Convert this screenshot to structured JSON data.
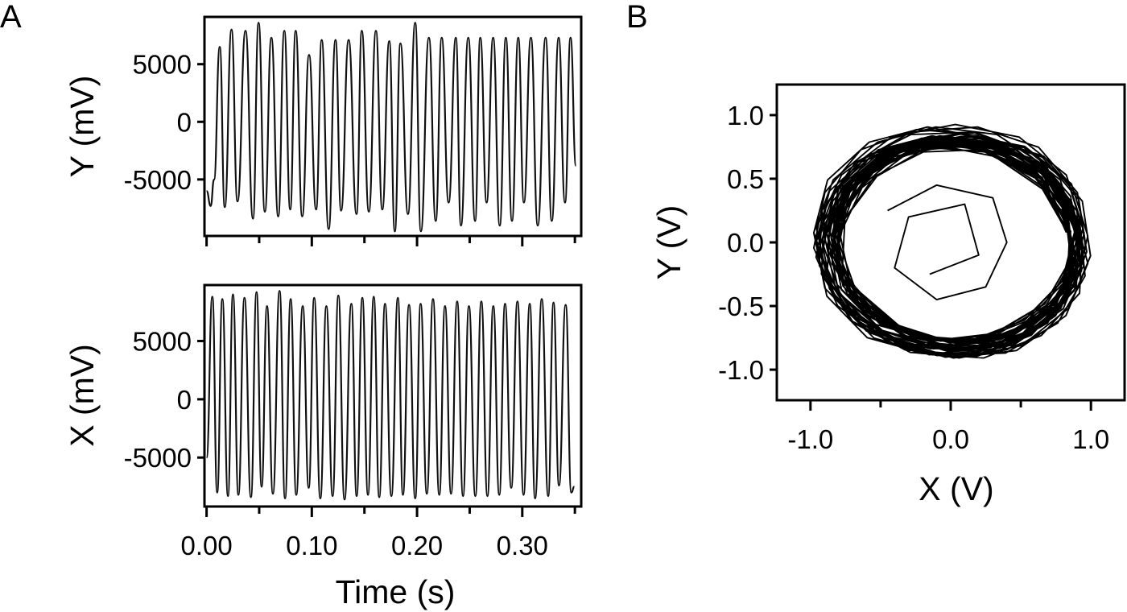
{
  "panel_a_letter": "A",
  "panel_b_letter": "B",
  "chart_data": [
    {
      "id": "panel-a-top",
      "type": "line",
      "xlabel": "",
      "ylabel": "Y (mV)",
      "xlim": [
        -0.002,
        0.356
      ],
      "ylim": [
        -9900,
        9100
      ],
      "yticks": [
        -5000,
        0,
        5000
      ],
      "ytick_labels": [
        "-5000",
        "0",
        "5000"
      ],
      "xticks": [
        0.0,
        0.05,
        0.1,
        0.15,
        0.2,
        0.25,
        0.3,
        0.35
      ],
      "xtick_labels": [],
      "grid": false,
      "series": [
        {
          "x": [
            0.0,
            0.0039,
            0.0071,
            0.0125,
            0.0173,
            0.0237,
            0.0294,
            0.037,
            0.0441,
            0.0494,
            0.0554,
            0.0616,
            0.0681,
            0.0739,
            0.0795,
            0.0847,
            0.0909,
            0.0974,
            0.1041,
            0.1094,
            0.116,
            0.1225,
            0.1278,
            0.135,
            0.1425,
            0.1475,
            0.1542,
            0.1609,
            0.167,
            0.1736,
            0.1789,
            0.1842,
            0.1914,
            0.1983,
            0.2036,
            0.2113,
            0.2178,
            0.2234,
            0.23,
            0.2369,
            0.2417,
            0.2487,
            0.2552,
            0.2601,
            0.2661,
            0.2723,
            0.2786,
            0.2844,
            0.2902,
            0.2962,
            0.3015,
            0.3082,
            0.3147,
            0.3222,
            0.328,
            0.3346,
            0.3406,
            0.3458,
            0.351
          ],
          "y": [
            -6000,
            -7300,
            -5000,
            6500,
            -7400,
            8000,
            -6900,
            7900,
            -8400,
            8600,
            -7800,
            7300,
            -8200,
            7900,
            -7600,
            7900,
            -8200,
            5800,
            -7600,
            7100,
            -9300,
            7100,
            -7700,
            7100,
            -8000,
            7900,
            -7800,
            7900,
            -7600,
            7000,
            -9500,
            6800,
            -8000,
            8600,
            -9500,
            7300,
            -8600,
            7300,
            -7000,
            7300,
            -9000,
            7300,
            -8600,
            7300,
            -7000,
            7300,
            -9000,
            7300,
            -8600,
            7300,
            -7000,
            7300,
            -9000,
            7300,
            -8600,
            7300,
            -7000,
            7300,
            -3800
          ]
        }
      ]
    },
    {
      "id": "panel-a-bottom",
      "type": "line",
      "xlabel": "Time (s)",
      "ylabel": "X (mV)",
      "xlim": [
        -0.002,
        0.356
      ],
      "ylim": [
        -9200,
        9800
      ],
      "yticks": [
        -5000,
        0,
        5000
      ],
      "ytick_labels": [
        "-5000",
        "0",
        "5000"
      ],
      "xticks": [
        0.0,
        0.05,
        0.1,
        0.15,
        0.2,
        0.25,
        0.3,
        0.35
      ],
      "xtick_labels": [
        "0.00",
        "0.10",
        "0.20",
        "0.30"
      ],
      "grid": false,
      "series": [
        {
          "x": [
            0.0,
            0.0055,
            0.0101,
            0.015,
            0.0203,
            0.0251,
            0.0302,
            0.036,
            0.0421,
            0.0475,
            0.0523,
            0.0574,
            0.063,
            0.0694,
            0.0746,
            0.0799,
            0.0852,
            0.0914,
            0.0971,
            0.1023,
            0.1081,
            0.1138,
            0.1198,
            0.1252,
            0.1311,
            0.1376,
            0.1426,
            0.148,
            0.1534,
            0.1589,
            0.1641,
            0.1696,
            0.1756,
            0.1818,
            0.1866,
            0.1924,
            0.1983,
            0.2034,
            0.2093,
            0.2152,
            0.2211,
            0.2266,
            0.2323,
            0.2381,
            0.2437,
            0.2493,
            0.2554,
            0.2611,
            0.2669,
            0.2725,
            0.2781,
            0.2836,
            0.2895,
            0.2954,
            0.3012,
            0.3071,
            0.3122,
            0.3185,
            0.3246,
            0.3297,
            0.3349,
            0.3412,
            0.3466,
            0.3495
          ],
          "y": [
            -5000,
            8800,
            -8000,
            8600,
            -8300,
            9000,
            -8200,
            8700,
            -8400,
            9200,
            -7500,
            8000,
            -8100,
            9300,
            -8500,
            8600,
            -8200,
            8000,
            -7600,
            8700,
            -8500,
            8000,
            -8300,
            8900,
            -8600,
            8200,
            -8300,
            8700,
            -8200,
            8800,
            -8400,
            8200,
            -8300,
            8700,
            -8200,
            8100,
            -8500,
            8200,
            -8100,
            8600,
            -8200,
            8000,
            -8100,
            8400,
            -8300,
            8000,
            -8300,
            8400,
            -8300,
            8000,
            -8200,
            8200,
            -7600,
            8400,
            -8200,
            8200,
            -8500,
            8600,
            -8300,
            8300,
            -7400,
            8100,
            -8000,
            -7500
          ]
        }
      ]
    },
    {
      "id": "panel-b",
      "type": "line",
      "xlabel": "X (V)",
      "ylabel": "Y (V)",
      "xlim": [
        -1.24,
        1.24
      ],
      "ylim": [
        -1.24,
        1.24
      ],
      "xticks": [
        -1.0,
        -0.5,
        0.0,
        0.5,
        1.0
      ],
      "xtick_labels": [
        "-1.0",
        "0.0",
        "1.0"
      ],
      "yticks": [
        -1.0,
        -0.5,
        0.0,
        0.5,
        1.0
      ],
      "ytick_labels": [
        "-1.0",
        "-0.5",
        "0.0",
        "0.5",
        "1.0"
      ],
      "grid": false,
      "series": [
        {
          "description_of_shape": "",
          "x": [
            0.9,
            0.72,
            0.36,
            -0.08,
            -0.5,
            -0.82,
            -0.96,
            -0.88,
            -0.58,
            -0.12,
            0.34,
            0.74,
            0.95,
            0.9,
            0.64,
            0.2,
            -0.26,
            -0.66,
            -0.9,
            -0.92,
            -0.7,
            -0.3,
            0.16,
            0.58,
            0.88,
            0.98,
            0.86,
            0.52,
            0.06,
            -0.4,
            -0.76,
            -0.94,
            -0.86,
            -0.56,
            -0.1,
            0.38,
            0.76,
            0.96,
            0.92,
            0.66,
            0.24,
            -0.22,
            -0.62,
            -0.88,
            -0.96,
            -0.8,
            -0.42,
            0.04,
            0.5,
            0.84,
            1.0,
            0.94,
            0.66,
            0.22,
            -0.26,
            -0.64,
            -0.9,
            -0.92,
            -0.68,
            -0.26,
            0.22,
            0.64,
            0.92,
            0.94,
            0.72,
            0.32,
            -0.14,
            -0.56,
            -0.86,
            -0.96,
            -0.82,
            -0.46,
            0.0,
            0.46,
            0.82,
            0.98,
            0.88,
            0.9
          ],
          "y": [
            0.12,
            0.56,
            0.82,
            0.88,
            0.76,
            0.46,
            0.04,
            -0.4,
            -0.74,
            -0.88,
            -0.82,
            -0.56,
            -0.16,
            0.28,
            0.66,
            0.84,
            0.82,
            0.6,
            0.22,
            -0.22,
            -0.6,
            -0.84,
            -0.88,
            -0.7,
            -0.36,
            0.08,
            0.5,
            0.8,
            0.9,
            0.8,
            0.5,
            0.08,
            -0.34,
            -0.7,
            -0.88,
            -0.86,
            -0.62,
            -0.24,
            0.2,
            0.58,
            0.82,
            0.86,
            0.7,
            0.36,
            -0.08,
            -0.48,
            -0.78,
            -0.9,
            -0.8,
            -0.5,
            -0.08,
            0.36,
            0.72,
            0.88,
            0.84,
            0.6,
            0.22,
            -0.22,
            -0.62,
            -0.86,
            -0.9,
            -0.72,
            -0.38,
            0.06,
            0.48,
            0.78,
            0.88,
            0.76,
            0.46,
            0.04,
            -0.4,
            -0.74,
            -0.9,
            -0.84,
            -0.56,
            -0.14,
            0.28,
            0.12
          ]
        }
      ]
    }
  ]
}
